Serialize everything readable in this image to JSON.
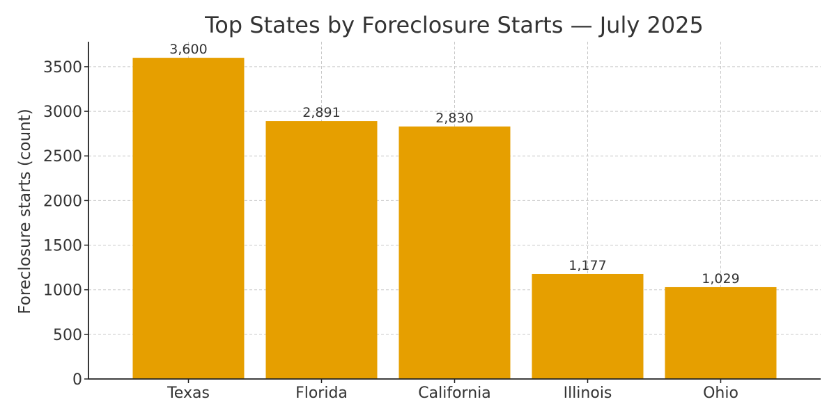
{
  "chart_data": {
    "type": "bar",
    "title": "Top States by Foreclosure Starts — July 2025",
    "xlabel": "",
    "ylabel": "Foreclosure starts (count)",
    "categories": [
      "Texas",
      "Florida",
      "California",
      "Illinois",
      "Ohio"
    ],
    "values": [
      3600,
      2891,
      2830,
      1177,
      1029
    ],
    "value_labels": [
      "3,600",
      "2,891",
      "2,830",
      "1,177",
      "1,029"
    ],
    "ylim": [
      0,
      3780
    ],
    "yticks": [
      0,
      500,
      1000,
      1500,
      2000,
      2500,
      3000,
      3500
    ],
    "grid": true,
    "bar_color": "#E69F00",
    "grid_color": "#c8c8c8",
    "axis_color": "#222222",
    "text_color": "#333333"
  }
}
